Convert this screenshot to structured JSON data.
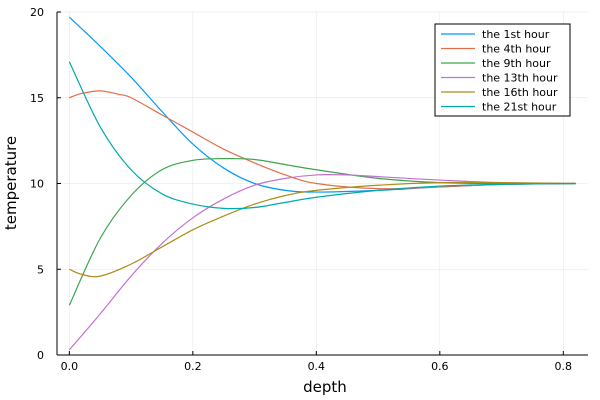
{
  "chart_data": {
    "type": "line",
    "title": "",
    "xlabel": "depth",
    "ylabel": "temperature",
    "xlim": [
      -0.02,
      0.84
    ],
    "ylim": [
      0,
      20
    ],
    "xticks": [
      0.0,
      0.2,
      0.4,
      0.6,
      0.8
    ],
    "xtick_labels": [
      "0.0",
      "0.2",
      "0.4",
      "0.6",
      "0.8"
    ],
    "yticks": [
      0,
      5,
      10,
      15,
      20
    ],
    "ytick_labels": [
      "0",
      "5",
      "10",
      "15",
      "20"
    ],
    "grid": true,
    "legend_position": "top-right",
    "series": [
      {
        "name": "the 1st hour",
        "color": "#009AFA",
        "x": [
          0.0,
          0.05,
          0.1,
          0.15,
          0.2,
          0.25,
          0.3,
          0.35,
          0.4,
          0.5,
          0.6,
          0.7,
          0.82
        ],
        "y": [
          19.7,
          18.0,
          16.2,
          14.2,
          12.3,
          10.9,
          10.0,
          9.6,
          9.5,
          9.6,
          9.8,
          9.95,
          10.0
        ]
      },
      {
        "name": "the 4th hour",
        "color": "#E36F47",
        "x": [
          0.0,
          0.02,
          0.05,
          0.08,
          0.1,
          0.15,
          0.2,
          0.25,
          0.3,
          0.35,
          0.4,
          0.5,
          0.6,
          0.7,
          0.82
        ],
        "y": [
          15.0,
          15.25,
          15.4,
          15.2,
          15.0,
          14.0,
          13.0,
          12.0,
          11.2,
          10.5,
          10.0,
          9.7,
          9.8,
          9.95,
          10.0
        ]
      },
      {
        "name": "the 9th hour",
        "color": "#3EA44E",
        "x": [
          0.0,
          0.05,
          0.1,
          0.15,
          0.2,
          0.25,
          0.3,
          0.35,
          0.4,
          0.5,
          0.6,
          0.7,
          0.82
        ],
        "y": [
          2.9,
          6.8,
          9.3,
          10.8,
          11.35,
          11.45,
          11.4,
          11.1,
          10.8,
          10.3,
          10.05,
          10.0,
          10.0
        ]
      },
      {
        "name": "the 13th hour",
        "color": "#C371D2",
        "x": [
          0.0,
          0.05,
          0.1,
          0.15,
          0.2,
          0.25,
          0.3,
          0.35,
          0.4,
          0.45,
          0.5,
          0.6,
          0.7,
          0.82
        ],
        "y": [
          0.3,
          2.4,
          4.6,
          6.5,
          8.0,
          9.1,
          9.9,
          10.3,
          10.5,
          10.5,
          10.4,
          10.2,
          10.05,
          10.0
        ]
      },
      {
        "name": "the 16th hour",
        "color": "#AC8D18",
        "x": [
          0.0,
          0.02,
          0.05,
          0.1,
          0.15,
          0.2,
          0.25,
          0.3,
          0.35,
          0.4,
          0.5,
          0.6,
          0.7,
          0.82
        ],
        "y": [
          5.0,
          4.7,
          4.6,
          5.3,
          6.3,
          7.3,
          8.1,
          8.8,
          9.3,
          9.6,
          9.9,
          10.05,
          10.05,
          10.0
        ]
      },
      {
        "name": "the 21st hour",
        "color": "#00A9AD",
        "x": [
          0.0,
          0.05,
          0.1,
          0.15,
          0.2,
          0.25,
          0.3,
          0.35,
          0.4,
          0.5,
          0.6,
          0.7,
          0.82
        ],
        "y": [
          17.1,
          13.3,
          10.8,
          9.4,
          8.8,
          8.55,
          8.6,
          8.9,
          9.2,
          9.6,
          9.85,
          9.95,
          10.0
        ]
      }
    ]
  }
}
